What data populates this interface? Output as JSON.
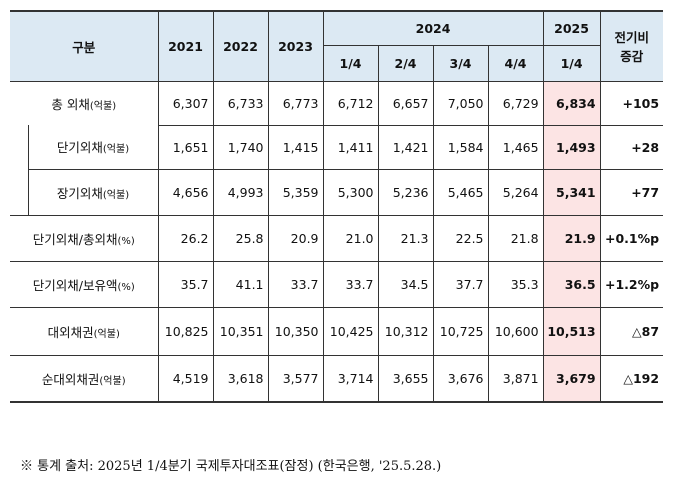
{
  "header": {
    "gubun": "구분",
    "years": [
      "2021",
      "2022",
      "2023"
    ],
    "year_2024": "2024",
    "quarters_2024": [
      "1/4",
      "2/4",
      "3/4",
      "4/4"
    ],
    "year_2025": "2025",
    "quarter_2025": "1/4",
    "change_line1": "전기비",
    "change_line2": "증감"
  },
  "rows": [
    {
      "label": "총 외채",
      "unit": "(억불)",
      "sub": false,
      "values": [
        "6,307",
        "6,733",
        "6,773",
        "6,712",
        "6,657",
        "7,050",
        "6,729"
      ],
      "current": "6,834",
      "change": "+105"
    },
    {
      "label": "단기외채",
      "unit": "(억불)",
      "sub": true,
      "values": [
        "1,651",
        "1,740",
        "1,415",
        "1,411",
        "1,421",
        "1,584",
        "1,465"
      ],
      "current": "1,493",
      "change": "+28"
    },
    {
      "label": "장기외채",
      "unit": "(억불)",
      "sub": true,
      "values": [
        "4,656",
        "4,993",
        "5,359",
        "5,300",
        "5,236",
        "5,465",
        "5,264"
      ],
      "current": "5,341",
      "change": "+77"
    },
    {
      "label": "단기외채/총외채",
      "unit": "(%)",
      "sub": false,
      "values": [
        "26.2",
        "25.8",
        "20.9",
        "21.0",
        "21.3",
        "22.5",
        "21.8"
      ],
      "current": "21.9",
      "change": "+0.1%p"
    },
    {
      "label": "단기외채/보유액",
      "unit": "(%)",
      "sub": false,
      "values": [
        "35.7",
        "41.1",
        "33.7",
        "33.7",
        "34.5",
        "37.7",
        "35.3"
      ],
      "current": "36.5",
      "change": "+1.2%p"
    },
    {
      "label": "대외채권",
      "unit": "(억불)",
      "sub": false,
      "values": [
        "10,825",
        "10,351",
        "10,350",
        "10,425",
        "10,312",
        "10,725",
        "10,600"
      ],
      "current": "10,513",
      "change": "△87"
    },
    {
      "label": "순대외채권",
      "unit": "(억불)",
      "sub": false,
      "values": [
        "4,519",
        "3,618",
        "3,577",
        "3,714",
        "3,655",
        "3,676",
        "3,871"
      ],
      "current": "3,679",
      "change": "△192"
    }
  ],
  "footnote": "※ 통계 출처: 2025년 1/4분기 국제투자대조표(잠정) (한국은행, '25.5.28.)",
  "colors": {
    "header_bg": "#dce9f3",
    "highlight_bg": "#fce4e4"
  }
}
